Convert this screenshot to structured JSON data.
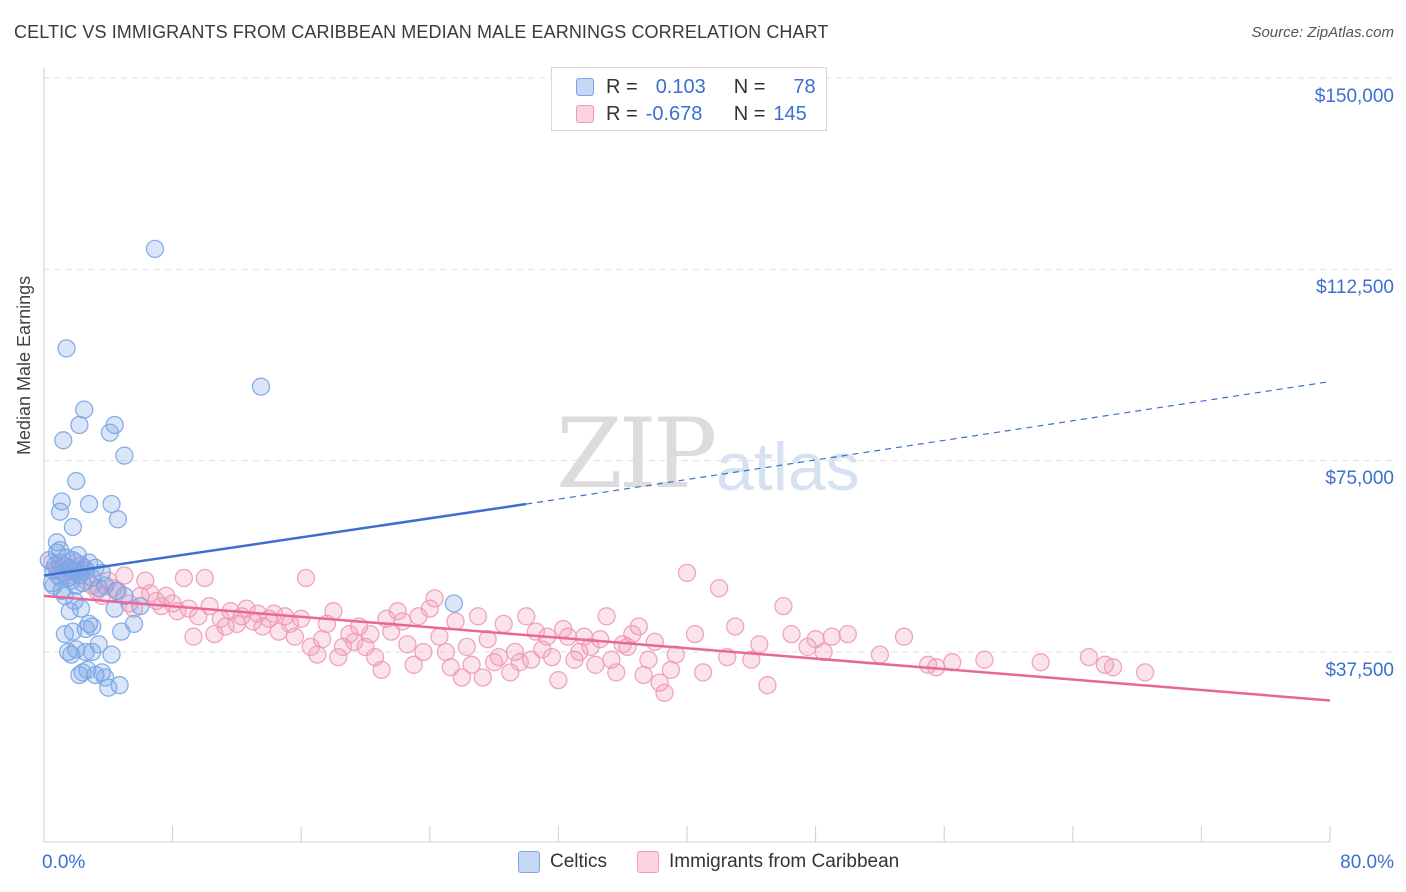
{
  "title": "CELTIC VS IMMIGRANTS FROM CARIBBEAN MEDIAN MALE EARNINGS CORRELATION CHART",
  "source": "Source: ZipAtlas.com",
  "watermark": {
    "zip": "ZIP",
    "atlas": "atlas"
  },
  "legend_top": [
    {
      "r_label": "R =",
      "r_value": "0.103",
      "n_label": "N =",
      "n_value": "78",
      "color": "#7aa6e6"
    },
    {
      "r_label": "R =",
      "r_value": "-0.678",
      "n_label": "N =",
      "n_value": "145",
      "color": "#f09ab8"
    }
  ],
  "legend_bottom": [
    {
      "label": "Celtics",
      "color": "#7aa6e6"
    },
    {
      "label": "Immigrants from Caribbean",
      "color": "#f09ab8"
    }
  ],
  "x_axis": {
    "min_label": "0.0%",
    "max_label": "80.0%"
  },
  "y_axis": {
    "title": "Median Male Earnings",
    "ticks": [
      "$150,000",
      "$112,500",
      "$75,000",
      "$37,500"
    ]
  },
  "chart_data": {
    "type": "scatter",
    "xlabel": "",
    "ylabel": "Median Male Earnings",
    "xlim": [
      0,
      80
    ],
    "ylim": [
      0,
      155000
    ],
    "y_ticks": [
      37500,
      75000,
      112500,
      150000
    ],
    "grid": true,
    "legend_position": "top-center",
    "series": [
      {
        "name": "Celtics",
        "color": "#7aa6e6",
        "line_color": "#3d6fd0",
        "trend": {
          "x0": 0,
          "y0": 52500,
          "x1": 30,
          "y1": 66500,
          "dashed_to_x": 80,
          "dashed_to_y": 90500
        },
        "points": [
          [
            0.3,
            55500
          ],
          [
            0.5,
            51000
          ],
          [
            0.6,
            53500
          ],
          [
            0.7,
            54500
          ],
          [
            0.8,
            57000
          ],
          [
            0.9,
            52500
          ],
          [
            1.0,
            55000
          ],
          [
            1.1,
            49500
          ],
          [
            1.2,
            53000
          ],
          [
            1.3,
            48500
          ],
          [
            1.4,
            56000
          ],
          [
            1.5,
            52000
          ],
          [
            1.6,
            54000
          ],
          [
            1.7,
            51500
          ],
          [
            1.8,
            55500
          ],
          [
            1.9,
            53500
          ],
          [
            2.0,
            50500
          ],
          [
            2.1,
            56500
          ],
          [
            2.2,
            52500
          ],
          [
            2.3,
            54500
          ],
          [
            2.4,
            51000
          ],
          [
            2.6,
            53500
          ],
          [
            2.8,
            55000
          ],
          [
            3.0,
            52000
          ],
          [
            3.2,
            54000
          ],
          [
            3.4,
            50000
          ],
          [
            3.6,
            53000
          ],
          [
            1.0,
            65000
          ],
          [
            1.1,
            67000
          ],
          [
            1.2,
            79000
          ],
          [
            1.4,
            97000
          ],
          [
            1.6,
            45500
          ],
          [
            1.8,
            62000
          ],
          [
            2.0,
            71000
          ],
          [
            2.2,
            82000
          ],
          [
            2.3,
            46000
          ],
          [
            2.5,
            85000
          ],
          [
            2.6,
            42000
          ],
          [
            2.8,
            66500
          ],
          [
            3.0,
            37500
          ],
          [
            4.1,
            80500
          ],
          [
            4.2,
            66500
          ],
          [
            4.4,
            82000
          ],
          [
            4.5,
            49500
          ],
          [
            4.6,
            63500
          ],
          [
            4.8,
            41500
          ],
          [
            5.0,
            76000
          ],
          [
            5.6,
            43000
          ],
          [
            6.0,
            46500
          ],
          [
            6.9,
            116500
          ],
          [
            13.5,
            89500
          ],
          [
            25.5,
            47000
          ],
          [
            1.3,
            41000
          ],
          [
            1.5,
            37500
          ],
          [
            1.7,
            37000
          ],
          [
            1.8,
            41500
          ],
          [
            2.0,
            38000
          ],
          [
            2.2,
            33000
          ],
          [
            2.4,
            33500
          ],
          [
            2.6,
            37500
          ],
          [
            2.8,
            43000
          ],
          [
            3.0,
            42500
          ],
          [
            3.2,
            33000
          ],
          [
            3.4,
            39000
          ],
          [
            3.6,
            33500
          ],
          [
            3.8,
            32500
          ],
          [
            4.0,
            30500
          ],
          [
            4.2,
            37000
          ],
          [
            4.4,
            46000
          ],
          [
            4.7,
            31000
          ],
          [
            5.0,
            48500
          ],
          [
            0.8,
            59000
          ],
          [
            1.0,
            57500
          ],
          [
            2.5,
            54000
          ],
          [
            2.7,
            34000
          ],
          [
            3.8,
            50500
          ],
          [
            0.6,
            50500
          ],
          [
            1.9,
            47500
          ]
        ]
      },
      {
        "name": "Immigrants from Caribbean",
        "color": "#f09ab8",
        "line_color": "#e8679a",
        "trend": {
          "x0": 0,
          "y0": 48500,
          "x1": 80,
          "y1": 28000
        },
        "points": [
          [
            0.5,
            55000
          ],
          [
            0.8,
            53500
          ],
          [
            1.0,
            52000
          ],
          [
            1.2,
            54500
          ],
          [
            1.5,
            53500
          ],
          [
            1.8,
            52500
          ],
          [
            2.0,
            55000
          ],
          [
            2.3,
            53000
          ],
          [
            2.6,
            51500
          ],
          [
            3.0,
            50500
          ],
          [
            3.3,
            49500
          ],
          [
            3.6,
            48500
          ],
          [
            4.0,
            51500
          ],
          [
            4.3,
            50000
          ],
          [
            4.6,
            49500
          ],
          [
            5.0,
            52500
          ],
          [
            5.3,
            47000
          ],
          [
            5.6,
            46000
          ],
          [
            6.0,
            48500
          ],
          [
            6.3,
            51500
          ],
          [
            6.6,
            49000
          ],
          [
            7.0,
            47500
          ],
          [
            7.3,
            46500
          ],
          [
            7.6,
            48500
          ],
          [
            8.0,
            47000
          ],
          [
            8.3,
            45500
          ],
          [
            8.7,
            52000
          ],
          [
            9.0,
            46000
          ],
          [
            9.3,
            40500
          ],
          [
            9.6,
            44500
          ],
          [
            10.0,
            52000
          ],
          [
            10.3,
            46500
          ],
          [
            10.6,
            41000
          ],
          [
            11.0,
            44000
          ],
          [
            11.3,
            42500
          ],
          [
            11.6,
            45500
          ],
          [
            12.0,
            43000
          ],
          [
            12.3,
            44500
          ],
          [
            12.6,
            46000
          ],
          [
            13.0,
            43500
          ],
          [
            13.3,
            45000
          ],
          [
            13.6,
            42500
          ],
          [
            14.0,
            44000
          ],
          [
            14.3,
            45000
          ],
          [
            14.6,
            41500
          ],
          [
            15.0,
            44500
          ],
          [
            15.3,
            43000
          ],
          [
            15.6,
            40500
          ],
          [
            16.0,
            44000
          ],
          [
            16.3,
            52000
          ],
          [
            16.6,
            38500
          ],
          [
            17.0,
            37000
          ],
          [
            17.3,
            40000
          ],
          [
            17.6,
            43000
          ],
          [
            18.0,
            45500
          ],
          [
            18.3,
            36500
          ],
          [
            18.6,
            38500
          ],
          [
            19.0,
            41000
          ],
          [
            19.3,
            39500
          ],
          [
            19.6,
            42500
          ],
          [
            20.0,
            38500
          ],
          [
            20.3,
            41000
          ],
          [
            20.6,
            36500
          ],
          [
            21.0,
            34000
          ],
          [
            21.3,
            44000
          ],
          [
            21.6,
            41500
          ],
          [
            22.0,
            45500
          ],
          [
            22.3,
            43500
          ],
          [
            22.6,
            39000
          ],
          [
            23.0,
            35000
          ],
          [
            23.3,
            44500
          ],
          [
            23.6,
            37500
          ],
          [
            24.0,
            46000
          ],
          [
            24.3,
            48000
          ],
          [
            24.6,
            40500
          ],
          [
            25.0,
            37500
          ],
          [
            25.3,
            34500
          ],
          [
            25.6,
            43500
          ],
          [
            26.0,
            32500
          ],
          [
            26.3,
            38500
          ],
          [
            26.6,
            35000
          ],
          [
            27.0,
            44500
          ],
          [
            27.3,
            32500
          ],
          [
            27.6,
            40000
          ],
          [
            28.0,
            35500
          ],
          [
            28.3,
            36500
          ],
          [
            28.6,
            43000
          ],
          [
            29.0,
            33500
          ],
          [
            29.3,
            37500
          ],
          [
            29.6,
            35500
          ],
          [
            30.0,
            44500
          ],
          [
            30.3,
            36000
          ],
          [
            30.6,
            41500
          ],
          [
            31.0,
            38000
          ],
          [
            31.3,
            40500
          ],
          [
            31.6,
            36500
          ],
          [
            32.0,
            32000
          ],
          [
            32.3,
            42000
          ],
          [
            32.6,
            40500
          ],
          [
            33.0,
            36000
          ],
          [
            33.3,
            37500
          ],
          [
            33.6,
            40500
          ],
          [
            34.0,
            38500
          ],
          [
            34.3,
            35000
          ],
          [
            34.6,
            40000
          ],
          [
            35.0,
            44500
          ],
          [
            35.3,
            36000
          ],
          [
            35.6,
            33500
          ],
          [
            36.0,
            39000
          ],
          [
            36.3,
            38500
          ],
          [
            36.6,
            41000
          ],
          [
            37.0,
            42500
          ],
          [
            37.3,
            33000
          ],
          [
            37.6,
            36000
          ],
          [
            38.0,
            39500
          ],
          [
            38.3,
            31500
          ],
          [
            38.6,
            29500
          ],
          [
            39.0,
            34000
          ],
          [
            39.3,
            37000
          ],
          [
            40.0,
            53000
          ],
          [
            40.5,
            41000
          ],
          [
            41.0,
            33500
          ],
          [
            42.0,
            50000
          ],
          [
            42.5,
            36500
          ],
          [
            43.0,
            42500
          ],
          [
            44.0,
            36000
          ],
          [
            44.5,
            39000
          ],
          [
            45.0,
            31000
          ],
          [
            46.0,
            46500
          ],
          [
            46.5,
            41000
          ],
          [
            47.5,
            38500
          ],
          [
            48.0,
            40000
          ],
          [
            48.5,
            37500
          ],
          [
            49.0,
            40500
          ],
          [
            50.0,
            41000
          ],
          [
            52.0,
            37000
          ],
          [
            53.5,
            40500
          ],
          [
            55.0,
            35000
          ],
          [
            55.5,
            34500
          ],
          [
            56.5,
            35500
          ],
          [
            58.5,
            36000
          ],
          [
            62.0,
            35500
          ],
          [
            65.0,
            36500
          ],
          [
            66.0,
            35000
          ],
          [
            66.5,
            34500
          ],
          [
            68.5,
            33500
          ]
        ]
      }
    ]
  }
}
